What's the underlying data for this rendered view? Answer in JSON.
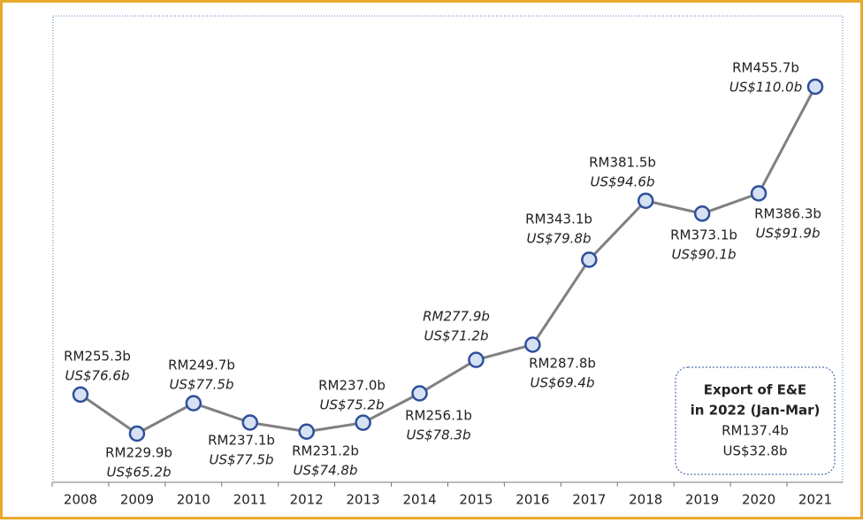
{
  "chart_data": {
    "type": "line",
    "categories": [
      "2008",
      "2009",
      "2010",
      "2011",
      "2012",
      "2013",
      "2014",
      "2015",
      "2016",
      "2017",
      "2018",
      "2019",
      "2020",
      "2021"
    ],
    "values": [
      255.3,
      229.9,
      249.7,
      237.1,
      231.2,
      237.0,
      256.1,
      277.9,
      287.8,
      343.1,
      381.5,
      373.1,
      386.3,
      455.7
    ],
    "value_labels": [
      "RM255.3b",
      "RM229.9b",
      "RM249.7b",
      "RM237.1b",
      "RM231.2b",
      "RM237.0b",
      "RM256.1b",
      "RM277.9b",
      "RM287.8b",
      "RM343.1b",
      "RM381.5b",
      "RM373.1b",
      "RM386.3b",
      "RM455.7b"
    ],
    "usd_values": [
      76.6,
      65.2,
      77.5,
      77.5,
      74.8,
      75.2,
      78.3,
      71.2,
      69.4,
      79.8,
      94.6,
      90.1,
      91.9,
      110.0
    ],
    "usd_value_labels": [
      "US$76.6b",
      "US$65.2b",
      "US$77.5b",
      "US$77.5b",
      "US$74.8b",
      "US$75.2b",
      "US$78.3b",
      "US$71.2b",
      "US$69.4b",
      "US$79.8b",
      "US$94.6b",
      "US$90.1b",
      "US$91.9b",
      "US$110.0b"
    ],
    "color": "#808080",
    "marker_fill": "#d6e2f3",
    "marker_edge": "#2f4f9a",
    "annotation": {
      "lines": [
        "Export of E&E",
        "in 2022 (Jan-Mar)",
        "RM137.4b",
        "US$32.8b"
      ]
    }
  }
}
